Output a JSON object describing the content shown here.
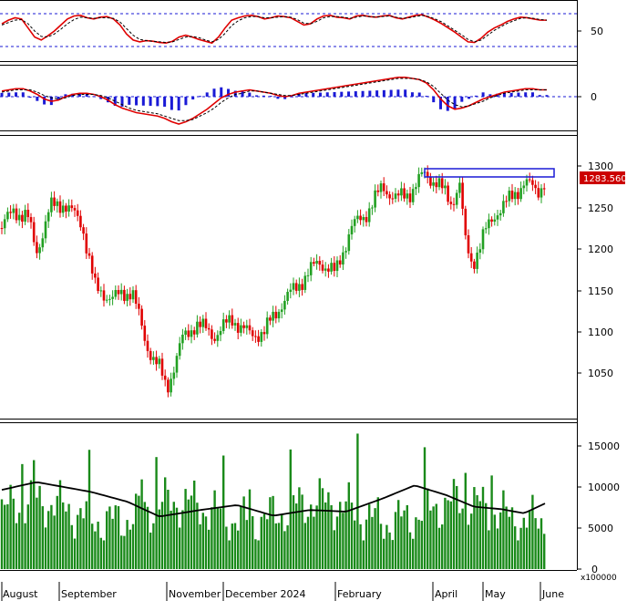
{
  "colors": {
    "up": "#22a022",
    "down": "#e00000",
    "line": "#e00000",
    "signal": "#000000",
    "hist": "#1a1ad6",
    "volume": "#1a8a1a",
    "volume_ma": "#000000",
    "ref": "#1a1ad6",
    "box": "#1a1ad6",
    "price_badge": "#cc0000",
    "price_badge_text": "#ffffff"
  },
  "chart_data": [
    {
      "type": "line",
      "panel": "rsi",
      "ylim": [
        0,
        100
      ],
      "ticks": [
        "50"
      ],
      "reference_lines": [
        70,
        30
      ],
      "series": [
        {
          "values": [
            62,
            68,
            72,
            70,
            55,
            40,
            35,
            42,
            50,
            60,
            70,
            75,
            76,
            72,
            70,
            73,
            74,
            70,
            60,
            45,
            35,
            32,
            34,
            33,
            31,
            30,
            33,
            40,
            43,
            40,
            36,
            33,
            30,
            40,
            55,
            68,
            72,
            75,
            76,
            74,
            70,
            72,
            75,
            74,
            72,
            66,
            60,
            62,
            70,
            75,
            76,
            73,
            72,
            70,
            75,
            76,
            74,
            73,
            75,
            76,
            72,
            70,
            73,
            76,
            77,
            73,
            68,
            62,
            55,
            48,
            40,
            32,
            31,
            38,
            48,
            55,
            60,
            66,
            70,
            73,
            72,
            70,
            68,
            68
          ]
        },
        {
          "values": [
            60,
            64,
            68,
            69,
            62,
            50,
            41,
            40,
            45,
            53,
            62,
            69,
            73,
            72,
            71,
            72,
            72,
            71,
            65,
            54,
            43,
            36,
            34,
            33,
            32,
            31,
            32,
            36,
            40,
            41,
            39,
            35,
            32,
            36,
            46,
            59,
            67,
            72,
            74,
            74,
            72,
            72,
            73,
            74,
            73,
            69,
            63,
            62,
            66,
            72,
            74,
            74,
            73,
            71,
            73,
            75,
            74,
            73,
            74,
            75,
            73,
            71,
            72,
            74,
            76,
            74,
            70,
            65,
            58,
            51,
            44,
            36,
            32,
            35,
            43,
            51,
            57,
            63,
            67,
            71,
            72,
            71,
            69,
            68
          ]
        }
      ]
    },
    {
      "type": "line",
      "panel": "macd",
      "ticks": [
        "0"
      ],
      "reference_lines": [
        0
      ],
      "series": [
        {
          "values": [
            5,
            6,
            7,
            7,
            5,
            2,
            -2,
            -4,
            -3,
            0,
            2,
            3,
            3,
            2,
            0,
            -3,
            -7,
            -10,
            -12,
            -14,
            -15,
            -16,
            -17,
            -19,
            -22,
            -24,
            -22,
            -19,
            -15,
            -11,
            -6,
            -1,
            2,
            4,
            5,
            6,
            5,
            4,
            3,
            1,
            0,
            1,
            3,
            4,
            5,
            6,
            7,
            8,
            9,
            10,
            11,
            12,
            13,
            14,
            15,
            16,
            17,
            17,
            16,
            15,
            12,
            6,
            -2,
            -8,
            -11,
            -10,
            -8,
            -5,
            -2,
            0,
            2,
            4,
            5,
            6,
            7,
            7,
            6,
            6
          ]
        },
        {
          "values": [
            4,
            5,
            6,
            6,
            6,
            4,
            1,
            -1,
            -2,
            -1,
            1,
            2,
            2,
            2,
            1,
            -1,
            -4,
            -7,
            -10,
            -12,
            -13,
            -14,
            -15,
            -17,
            -19,
            -21,
            -21,
            -20,
            -17,
            -14,
            -10,
            -5,
            -1,
            2,
            3,
            5,
            5,
            4,
            3,
            2,
            1,
            1,
            2,
            3,
            4,
            5,
            6,
            7,
            8,
            9,
            10,
            11,
            12,
            13,
            14,
            15,
            16,
            16,
            16,
            15,
            13,
            9,
            3,
            -3,
            -7,
            -9,
            -8,
            -6,
            -4,
            -1,
            1,
            3,
            4,
            5,
            6,
            6,
            6,
            6
          ]
        }
      ]
    },
    {
      "type": "candlestick",
      "panel": "price",
      "ylim": [
        1010,
        1320
      ],
      "ticks": [
        "1300",
        "1250",
        "1200",
        "1150",
        "1100",
        "1050"
      ],
      "last_price": "1283.560",
      "resistance_box": [
        1280,
        1293
      ]
    },
    {
      "type": "bar",
      "panel": "volume",
      "ylim": [
        0,
        16500
      ],
      "ticks": [
        "15000",
        "10000",
        "5000",
        "0"
      ],
      "unit": "x100000",
      "xlabels": [
        "August",
        "September",
        "November",
        "December 2024",
        "February",
        "April",
        "May",
        "June"
      ]
    }
  ]
}
